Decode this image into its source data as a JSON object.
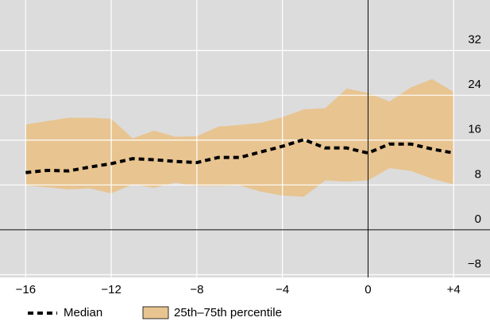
{
  "chart_data": {
    "type": "line",
    "x": [
      -16,
      -15,
      -14,
      -13,
      -12,
      -11,
      -10,
      -9,
      -8,
      -7,
      -6,
      -5,
      -4,
      -3,
      -2,
      -1,
      0,
      1,
      2,
      3,
      4
    ],
    "series": [
      {
        "name": "Median",
        "color": "#000000",
        "values": [
          10.2,
          10.6,
          10.5,
          11.2,
          11.8,
          12.7,
          12.5,
          12.2,
          12.0,
          12.9,
          12.9,
          13.9,
          14.9,
          16.1,
          14.6,
          14.6,
          13.7,
          15.3,
          15.3,
          14.4,
          13.7
        ]
      },
      {
        "name": "25th–75th percentile",
        "color": "#e8c491",
        "lower": [
          7.9,
          7.6,
          7.2,
          7.4,
          6.5,
          8.1,
          7.5,
          8.4,
          7.8,
          7.8,
          7.9,
          6.8,
          6.1,
          5.9,
          8.8,
          8.6,
          8.8,
          11.0,
          10.5,
          9.1,
          8.1
        ],
        "upper": [
          18.8,
          19.4,
          20.0,
          20.0,
          19.8,
          16.3,
          17.7,
          16.6,
          16.7,
          18.4,
          18.7,
          19.1,
          20.1,
          21.5,
          21.7,
          25.2,
          24.4,
          22.9,
          25.4,
          26.9,
          24.6
        ]
      }
    ],
    "xlim": [
      -17.2,
      5.7
    ],
    "ylim": [
      -8.5,
      41
    ],
    "xticks": [
      {
        "value": -16,
        "label": "−16"
      },
      {
        "value": -12,
        "label": "−12"
      },
      {
        "value": -8,
        "label": "−8"
      },
      {
        "value": -4,
        "label": "−4"
      },
      0,
      {
        "value": 4,
        "label": "+4"
      }
    ],
    "yticks": [
      32,
      24,
      16,
      8,
      0,
      {
        "value": -8,
        "label": "−8"
      }
    ],
    "grid": true,
    "legend": "bottom"
  }
}
